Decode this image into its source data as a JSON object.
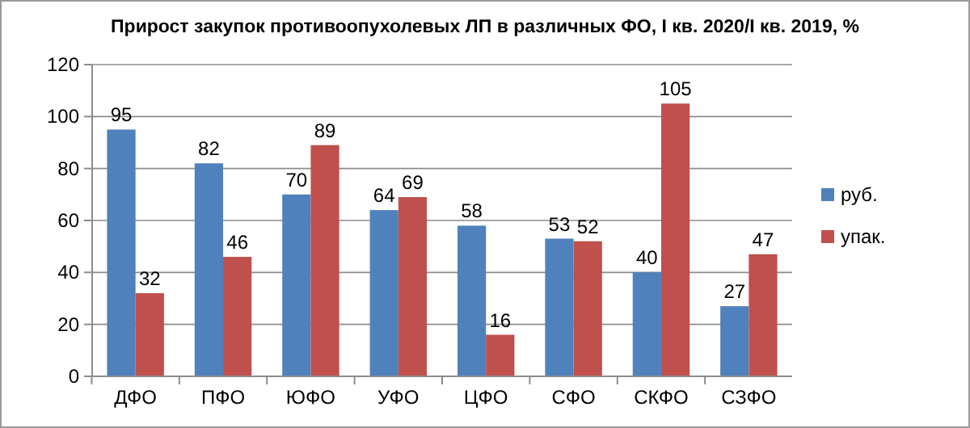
{
  "chart_data": {
    "type": "bar",
    "title": "Прирост закупок противоопухолевых ЛП в различных ФО, I кв. 2020/I кв. 2019, %",
    "categories": [
      "ДФО",
      "ПФО",
      "ЮФО",
      "УФО",
      "ЦФО",
      "СФО",
      "СКФО",
      "СЗФО"
    ],
    "series": [
      {
        "name": "руб.",
        "color": "#4f81bd",
        "values": [
          95,
          82,
          70,
          64,
          58,
          53,
          40,
          27
        ]
      },
      {
        "name": "упак.",
        "color": "#c0504d",
        "values": [
          32,
          46,
          89,
          69,
          16,
          52,
          105,
          47
        ]
      }
    ],
    "ylim": [
      0,
      120
    ],
    "yticks": [
      0,
      20,
      40,
      60,
      80,
      100,
      120
    ],
    "grid": "y",
    "legend": "right",
    "data_labels": true
  }
}
